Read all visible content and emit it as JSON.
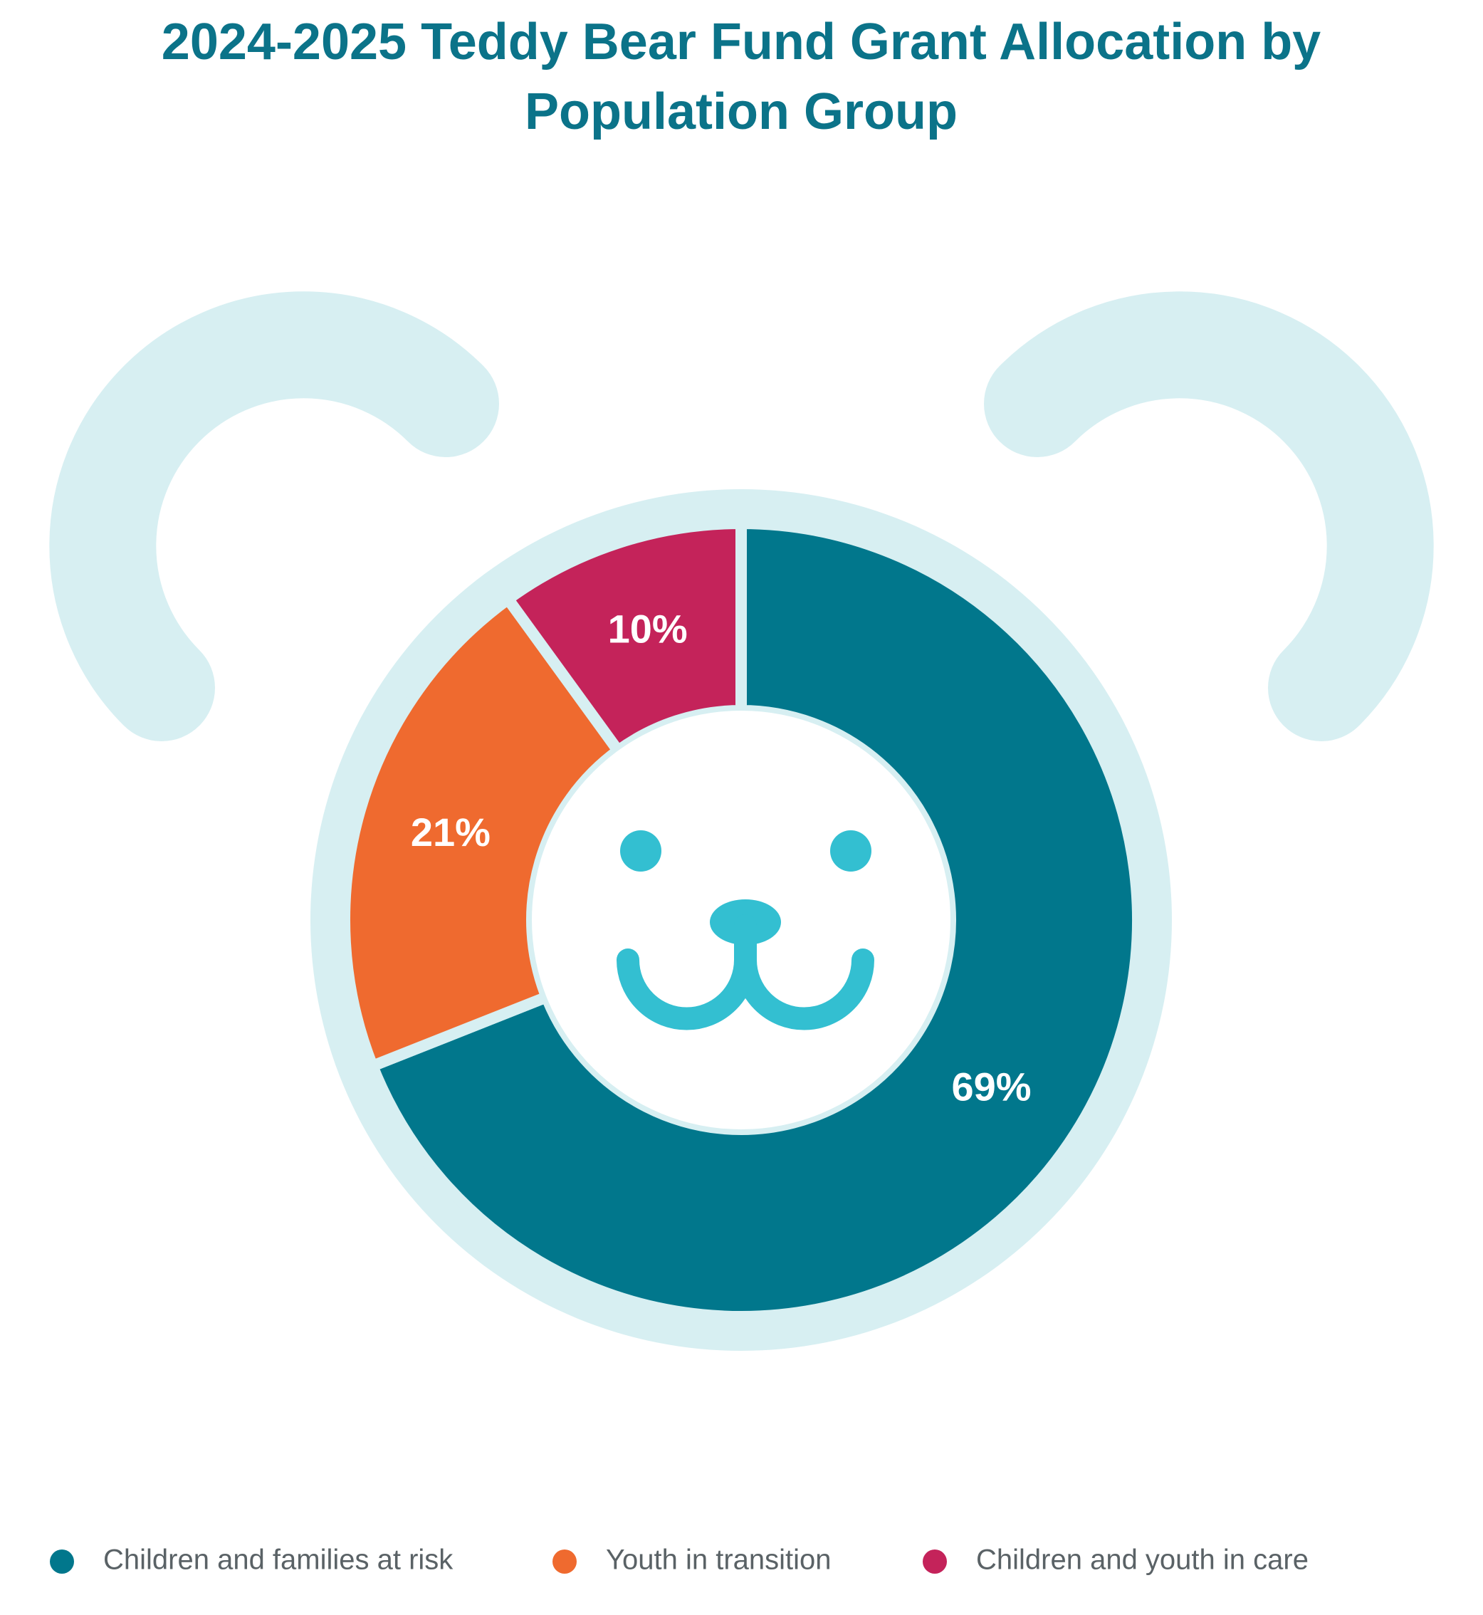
{
  "chart_data": {
    "type": "pie",
    "title": "2024-2025 Teddy Bear Fund Grant Allocation by Population Group",
    "categories": [
      "Children and families at risk",
      "Youth in transition",
      "Children and youth in care"
    ],
    "values": [
      69,
      21,
      10
    ],
    "value_labels": [
      "69%",
      "21%",
      "10%"
    ],
    "colors": [
      "#01778c",
      "#ef6a2f",
      "#c4235a"
    ],
    "donut": true,
    "legend": "bottom"
  }
}
